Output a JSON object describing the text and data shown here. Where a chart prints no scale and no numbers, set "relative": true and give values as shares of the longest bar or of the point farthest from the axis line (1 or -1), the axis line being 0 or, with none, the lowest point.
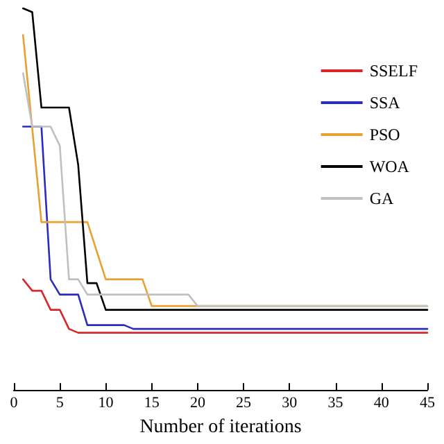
{
  "chart_data": {
    "type": "line",
    "xlabel": "Number of iterations",
    "relative": true,
    "xlim": [
      0,
      45
    ],
    "xticks": [
      0,
      5,
      10,
      15,
      20,
      25,
      30,
      35,
      40,
      45
    ],
    "legend": "top right",
    "grid": false,
    "marker": "none",
    "line_style": "solid",
    "series": [
      {
        "name": "SSELF",
        "color": "#d9262a",
        "x": [
          1,
          2,
          3,
          4,
          5,
          6,
          7,
          45
        ],
        "values": [
          0.29,
          0.26,
          0.26,
          0.21,
          0.21,
          0.16,
          0.15,
          0.15
        ]
      },
      {
        "name": "SSA",
        "color": "#2b2bbf",
        "x": [
          1,
          3,
          4,
          5,
          7,
          8,
          12,
          13,
          45
        ],
        "values": [
          0.69,
          0.69,
          0.29,
          0.25,
          0.25,
          0.17,
          0.17,
          0.16,
          0.16
        ]
      },
      {
        "name": "PSO",
        "color": "#e8a030",
        "x": [
          1,
          3,
          8,
          10,
          14,
          15,
          45
        ],
        "values": [
          0.93,
          0.44,
          0.44,
          0.29,
          0.29,
          0.22,
          0.22
        ]
      },
      {
        "name": "WOA",
        "color": "#000000",
        "x": [
          1,
          2,
          3,
          6,
          7,
          8,
          9,
          10,
          45
        ],
        "values": [
          1,
          0.99,
          0.74,
          0.74,
          0.59,
          0.28,
          0.28,
          0.21,
          0.21
        ]
      },
      {
        "name": "GA",
        "color": "#c0c0c0",
        "x": [
          1,
          2,
          4,
          5,
          6,
          7,
          8,
          19,
          20,
          45
        ],
        "values": [
          0.83,
          0.69,
          0.69,
          0.64,
          0.29,
          0.29,
          0.25,
          0.25,
          0.22,
          0.22
        ]
      }
    ]
  }
}
